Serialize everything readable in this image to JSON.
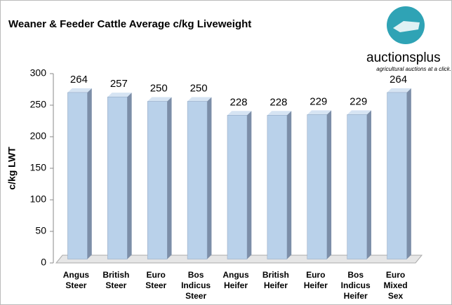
{
  "chart_data": {
    "type": "bar3d",
    "title": "Weaner & Feeder Cattle Average c/kg Liveweight",
    "ylabel": "c/kg LWT",
    "categories": [
      "Angus Steer",
      "British Steer",
      "Euro Steer",
      "Bos Indicus Steer",
      "Angus Heifer",
      "British Heifer",
      "Euro Heifer",
      "Bos Indicus Heifer",
      "Euro Mixed Sex"
    ],
    "values": [
      264,
      257,
      250,
      250,
      228,
      228,
      229,
      229,
      264
    ],
    "color": "#b9d1ea",
    "ylim": [
      0,
      300
    ],
    "yticks": [
      0,
      50,
      100,
      150,
      200,
      250,
      300
    ],
    "grid": false
  },
  "logo": {
    "name": "auctionsplus",
    "tagline": "agricultural auctions at a click."
  }
}
